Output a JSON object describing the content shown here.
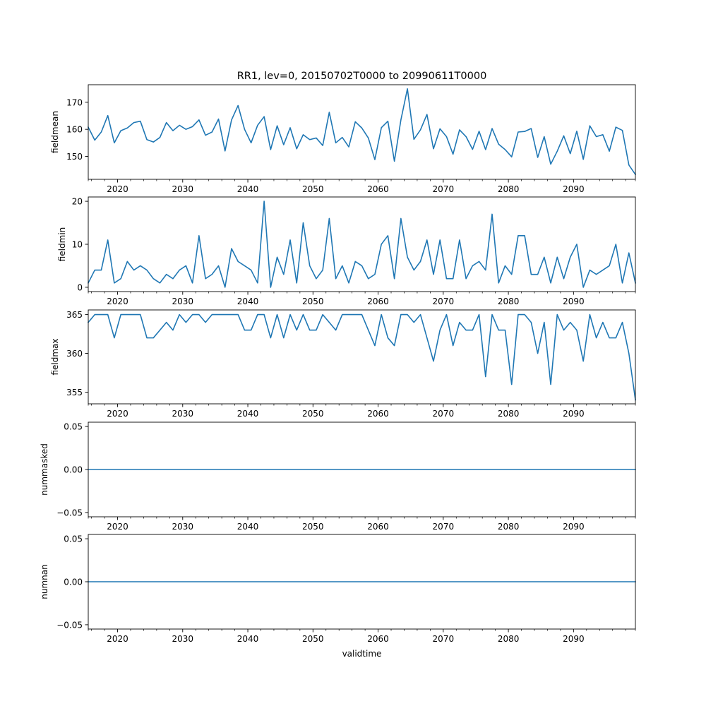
{
  "figure": {
    "title": "RR1, lev=0, 20150702T0000 to 20990611T0000",
    "xlabel": "validtime"
  },
  "chart_data": [
    {
      "type": "line",
      "ylabel": "fieldmean",
      "series_color": "#1f77b4",
      "xlim": [
        2015.5,
        2099.5
      ],
      "ylim": [
        141.5,
        176.5
      ],
      "xticks": [
        2020,
        2030,
        2040,
        2050,
        2060,
        2070,
        2080,
        2090
      ],
      "xtick_labels": [
        "2020",
        "2030",
        "2040",
        "2050",
        "2060",
        "2070",
        "2080",
        "2090"
      ],
      "yticks": [
        150,
        160,
        170
      ],
      "ytick_labels": [
        "150",
        "160",
        "170"
      ],
      "x": [
        2015.5,
        2016.5,
        2017.5,
        2018.5,
        2019.5,
        2020.5,
        2021.5,
        2022.5,
        2023.5,
        2024.5,
        2025.5,
        2026.5,
        2027.5,
        2028.5,
        2029.5,
        2030.5,
        2031.5,
        2032.5,
        2033.5,
        2034.5,
        2035.5,
        2036.5,
        2037.5,
        2038.5,
        2039.5,
        2040.5,
        2041.5,
        2042.5,
        2043.5,
        2044.5,
        2045.5,
        2046.5,
        2047.5,
        2048.5,
        2049.5,
        2050.5,
        2051.5,
        2052.5,
        2053.5,
        2054.5,
        2055.5,
        2056.5,
        2057.5,
        2058.5,
        2059.5,
        2060.5,
        2061.5,
        2062.5,
        2063.5,
        2064.5,
        2065.5,
        2066.5,
        2067.5,
        2068.5,
        2069.5,
        2070.5,
        2071.5,
        2072.5,
        2073.5,
        2074.5,
        2075.5,
        2076.5,
        2077.5,
        2078.5,
        2079.5,
        2080.5,
        2081.5,
        2082.5,
        2083.5,
        2084.5,
        2085.5,
        2086.5,
        2087.5,
        2088.5,
        2089.5,
        2090.5,
        2091.5,
        2092.5,
        2093.5,
        2094.5,
        2095.5,
        2096.5,
        2097.5,
        2098.5,
        2099.5
      ],
      "values": [
        160.8,
        156,
        159,
        165.1,
        155,
        159.5,
        160.5,
        162.5,
        163,
        156.2,
        155.3,
        157,
        162.5,
        159.5,
        161.5,
        160,
        161,
        163.5,
        157.8,
        159,
        163.8,
        152,
        163.5,
        168.8,
        160,
        155,
        161.5,
        164.7,
        152.5,
        161.3,
        154.3,
        160.6,
        152.8,
        158,
        156.2,
        156.8,
        154,
        166.3,
        155,
        157,
        153.5,
        162.8,
        160.5,
        156.8,
        148.8,
        160.6,
        163,
        148.2,
        163.5,
        175,
        156.3,
        159.8,
        165.5,
        152.8,
        160.2,
        157.3,
        150.8,
        159.8,
        157.3,
        152.6,
        159.3,
        152.5,
        160.3,
        154.5,
        152.5,
        149.8,
        159,
        159.2,
        160.3,
        149.6,
        157.3,
        147.1,
        151.9,
        157.6,
        151,
        159.3,
        148.9,
        161.3,
        157.3,
        158,
        151.9,
        160.8,
        159.6,
        146.8,
        143.3
      ]
    },
    {
      "type": "line",
      "ylabel": "fieldmin",
      "series_color": "#1f77b4",
      "xlim": [
        2015.5,
        2099.5
      ],
      "ylim": [
        -1,
        21
      ],
      "xticks": [
        2020,
        2030,
        2040,
        2050,
        2060,
        2070,
        2080,
        2090
      ],
      "xtick_labels": [
        "2020",
        "2030",
        "2040",
        "2050",
        "2060",
        "2070",
        "2080",
        "2090"
      ],
      "yticks": [
        0,
        10,
        20
      ],
      "ytick_labels": [
        "0",
        "10",
        "20"
      ],
      "x": [
        2015.5,
        2016.5,
        2017.5,
        2018.5,
        2019.5,
        2020.5,
        2021.5,
        2022.5,
        2023.5,
        2024.5,
        2025.5,
        2026.5,
        2027.5,
        2028.5,
        2029.5,
        2030.5,
        2031.5,
        2032.5,
        2033.5,
        2034.5,
        2035.5,
        2036.5,
        2037.5,
        2038.5,
        2039.5,
        2040.5,
        2041.5,
        2042.5,
        2043.5,
        2044.5,
        2045.5,
        2046.5,
        2047.5,
        2048.5,
        2049.5,
        2050.5,
        2051.5,
        2052.5,
        2053.5,
        2054.5,
        2055.5,
        2056.5,
        2057.5,
        2058.5,
        2059.5,
        2060.5,
        2061.5,
        2062.5,
        2063.5,
        2064.5,
        2065.5,
        2066.5,
        2067.5,
        2068.5,
        2069.5,
        2070.5,
        2071.5,
        2072.5,
        2073.5,
        2074.5,
        2075.5,
        2076.5,
        2077.5,
        2078.5,
        2079.5,
        2080.5,
        2081.5,
        2082.5,
        2083.5,
        2084.5,
        2085.5,
        2086.5,
        2087.5,
        2088.5,
        2089.5,
        2090.5,
        2091.5,
        2092.5,
        2093.5,
        2094.5,
        2095.5,
        2096.5,
        2097.5,
        2098.5,
        2099.5
      ],
      "values": [
        1,
        4,
        4,
        11,
        1,
        2,
        6,
        4,
        5,
        4,
        2,
        1,
        3,
        2,
        4,
        5,
        1,
        12,
        2,
        3,
        5,
        0,
        9,
        6,
        5,
        4,
        1,
        20,
        0,
        7,
        3,
        11,
        1,
        15,
        5,
        2,
        4,
        16,
        2,
        5,
        1,
        6,
        5,
        2,
        3,
        10,
        12,
        2,
        16,
        7,
        4,
        6,
        11,
        3,
        11,
        2,
        2,
        11,
        2,
        5,
        6,
        4,
        17,
        1,
        5,
        3,
        12,
        12,
        3,
        3,
        7,
        1,
        7,
        2,
        7,
        10,
        0,
        4,
        3,
        4,
        5,
        10,
        1,
        8,
        1
      ]
    },
    {
      "type": "line",
      "ylabel": "fieldmax",
      "series_color": "#1f77b4",
      "xlim": [
        2015.5,
        2099.5
      ],
      "ylim": [
        353.5,
        365.6
      ],
      "xticks": [
        2020,
        2030,
        2040,
        2050,
        2060,
        2070,
        2080,
        2090
      ],
      "xtick_labels": [
        "2020",
        "2030",
        "2040",
        "2050",
        "2060",
        "2070",
        "2080",
        "2090"
      ],
      "yticks": [
        355,
        360,
        365
      ],
      "ytick_labels": [
        "355",
        "360",
        "365"
      ],
      "x": [
        2015.5,
        2016.5,
        2017.5,
        2018.5,
        2019.5,
        2020.5,
        2021.5,
        2022.5,
        2023.5,
        2024.5,
        2025.5,
        2026.5,
        2027.5,
        2028.5,
        2029.5,
        2030.5,
        2031.5,
        2032.5,
        2033.5,
        2034.5,
        2035.5,
        2036.5,
        2037.5,
        2038.5,
        2039.5,
        2040.5,
        2041.5,
        2042.5,
        2043.5,
        2044.5,
        2045.5,
        2046.5,
        2047.5,
        2048.5,
        2049.5,
        2050.5,
        2051.5,
        2052.5,
        2053.5,
        2054.5,
        2055.5,
        2056.5,
        2057.5,
        2058.5,
        2059.5,
        2060.5,
        2061.5,
        2062.5,
        2063.5,
        2064.5,
        2065.5,
        2066.5,
        2067.5,
        2068.5,
        2069.5,
        2070.5,
        2071.5,
        2072.5,
        2073.5,
        2074.5,
        2075.5,
        2076.5,
        2077.5,
        2078.5,
        2079.5,
        2080.5,
        2081.5,
        2082.5,
        2083.5,
        2084.5,
        2085.5,
        2086.5,
        2087.5,
        2088.5,
        2089.5,
        2090.5,
        2091.5,
        2092.5,
        2093.5,
        2094.5,
        2095.5,
        2096.5,
        2097.5,
        2098.5,
        2099.5
      ],
      "values": [
        364,
        365,
        365,
        365,
        362,
        365,
        365,
        365,
        365,
        362,
        362,
        363,
        364,
        363,
        365,
        364,
        365,
        365,
        364,
        365,
        365,
        365,
        365,
        365,
        363,
        363,
        365,
        365,
        362,
        365,
        362,
        365,
        363,
        365,
        363,
        363,
        365,
        364,
        363,
        365,
        365,
        365,
        365,
        363,
        361,
        365,
        362,
        361,
        365,
        365,
        364,
        365,
        362,
        359,
        363,
        365,
        361,
        364,
        363,
        363,
        365,
        357,
        365,
        363,
        363,
        356,
        365,
        365,
        364,
        360,
        364,
        356,
        365,
        363,
        364,
        363,
        359,
        365,
        362,
        364,
        362,
        362,
        364,
        360,
        354
      ]
    },
    {
      "type": "line",
      "ylabel": "nummasked",
      "series_color": "#1f77b4",
      "xlim": [
        2015.5,
        2099.5
      ],
      "ylim": [
        -0.055,
        0.055
      ],
      "xticks": [
        2020,
        2030,
        2040,
        2050,
        2060,
        2070,
        2080,
        2090
      ],
      "xtick_labels": [
        "2020",
        "2030",
        "2040",
        "2050",
        "2060",
        "2070",
        "2080",
        "2090"
      ],
      "yticks": [
        -0.05,
        0,
        0.05
      ],
      "ytick_labels": [
        "−0.05",
        "0.00",
        "0.05"
      ],
      "x": [
        2015.5,
        2099.5
      ],
      "values": [
        0,
        0
      ]
    },
    {
      "type": "line",
      "ylabel": "numnan",
      "series_color": "#1f77b4",
      "xlim": [
        2015.5,
        2099.5
      ],
      "ylim": [
        -0.055,
        0.055
      ],
      "xticks": [
        2020,
        2030,
        2040,
        2050,
        2060,
        2070,
        2080,
        2090
      ],
      "xtick_labels": [
        "2020",
        "2030",
        "2040",
        "2050",
        "2060",
        "2070",
        "2080",
        "2090"
      ],
      "yticks": [
        -0.05,
        0,
        0.05
      ],
      "ytick_labels": [
        "−0.05",
        "0.00",
        "0.05"
      ],
      "x": [
        2015.5,
        2099.5
      ],
      "values": [
        0,
        0
      ]
    }
  ]
}
